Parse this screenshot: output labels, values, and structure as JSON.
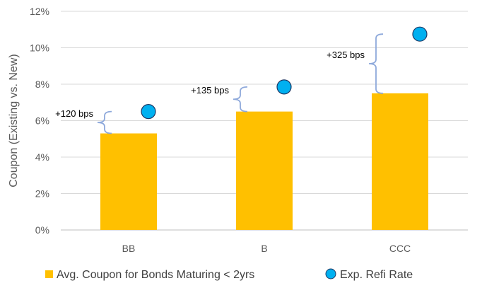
{
  "chart_data": {
    "type": "bar",
    "title": "",
    "xlabel": "",
    "ylabel": "Coupon (Existing vs. New)",
    "ylim": [
      0,
      12
    ],
    "yticks": [
      "0%",
      "2%",
      "4%",
      "6%",
      "8%",
      "10%",
      "12%"
    ],
    "categories": [
      "BB",
      "B",
      "CCC"
    ],
    "grid": true,
    "legend_position": "bottom",
    "series": [
      {
        "name": "Avg. Coupon for Bonds Maturing < 2yrs",
        "kind": "bar",
        "color": "#FFC000",
        "values": [
          5.3,
          6.5,
          7.5
        ]
      },
      {
        "name": "Exp. Refi Rate",
        "kind": "marker",
        "color": "#00B0F0",
        "values": [
          6.5,
          7.85,
          10.75
        ]
      }
    ],
    "annotations": [
      "+120 bps",
      "+135 bps",
      "+325 bps"
    ]
  }
}
